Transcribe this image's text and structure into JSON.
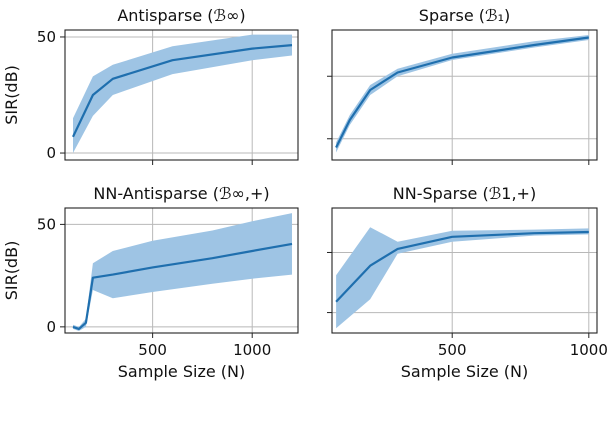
{
  "colors": {
    "line": "#1f6fae",
    "band": "#9ec4e4"
  },
  "chart_data": [
    {
      "type": "line",
      "title": "Antisparse (ℬ∞)",
      "xlabel": "",
      "ylabel": "SIR(dB)",
      "xlim": [
        60,
        1230
      ],
      "ylim": [
        -3,
        53
      ],
      "x_ticks": [
        500,
        1000
      ],
      "x_tick_labels": [
        "",
        ""
      ],
      "y_ticks": [
        0,
        50
      ],
      "y_tick_labels": [
        "0",
        "50"
      ],
      "grid": true,
      "series": [
        {
          "x": [
            100,
            200,
            300,
            600,
            1000,
            1200
          ],
          "mean": [
            7,
            25,
            32,
            40,
            45,
            46.5
          ],
          "lower": [
            0,
            16,
            25,
            34,
            40,
            42
          ],
          "upper": [
            15,
            33,
            38,
            46,
            51,
            51
          ]
        }
      ]
    },
    {
      "type": "line",
      "title": "Sparse (ℬ₁)",
      "xlabel": "",
      "ylabel": "",
      "xlim": [
        60,
        1030
      ],
      "ylim": [
        4,
        56
      ],
      "x_ticks": [
        500,
        1000
      ],
      "x_tick_labels": [
        "",
        ""
      ],
      "y_ticks": [
        12.5,
        37.5
      ],
      "y_tick_labels": [
        "",
        ""
      ],
      "grid": true,
      "series": [
        {
          "x": [
            75,
            125,
            200,
            300,
            500,
            800,
            1000
          ],
          "mean": [
            9,
            20,
            32,
            39,
            45,
            50,
            53
          ],
          "lower": [
            7,
            18,
            30,
            37.5,
            44,
            49,
            52
          ],
          "upper": [
            11,
            22,
            34,
            40.5,
            46.5,
            51.5,
            54
          ]
        }
      ]
    },
    {
      "type": "line",
      "title": "NN-Antisparse (ℬ∞,+)",
      "xlabel": "Sample Size (N)",
      "ylabel": "SIR(dB)",
      "xlim": [
        60,
        1230
      ],
      "ylim": [
        -3,
        58
      ],
      "x_ticks": [
        500,
        1000
      ],
      "x_tick_labels": [
        "500",
        "1000"
      ],
      "y_ticks": [
        0,
        50
      ],
      "y_tick_labels": [
        "0",
        "50"
      ],
      "grid": true,
      "series": [
        {
          "x": [
            100,
            130,
            165,
            200,
            300,
            500,
            800,
            1000,
            1200
          ],
          "mean": [
            0,
            -1,
            2,
            24,
            25.5,
            29,
            33.5,
            37,
            40.5
          ],
          "lower": [
            -1,
            -2,
            0,
            18,
            14,
            17,
            21,
            23.5,
            25.5
          ],
          "upper": [
            1,
            0,
            4,
            31,
            37,
            42,
            47,
            51.5,
            55.5
          ]
        }
      ]
    },
    {
      "type": "line",
      "title": "NN-Sparse (ℬ1,+)",
      "xlabel": "Sample Size (N)",
      "ylabel": "",
      "xlim": [
        60,
        1030
      ],
      "ylim": [
        4,
        56
      ],
      "x_ticks": [
        500,
        1000
      ],
      "x_tick_labels": [
        "500",
        "1000"
      ],
      "y_ticks": [
        12.5,
        37.5
      ],
      "y_tick_labels": [
        "",
        ""
      ],
      "grid": true,
      "series": [
        {
          "x": [
            75,
            200,
            300,
            500,
            800,
            1000
          ],
          "mean": [
            17,
            32,
            39,
            44,
            45.5,
            46
          ],
          "lower": [
            6,
            18,
            37,
            42,
            44.5,
            45
          ],
          "upper": [
            28,
            48,
            42,
            46.5,
            47,
            47.5
          ]
        }
      ]
    }
  ]
}
